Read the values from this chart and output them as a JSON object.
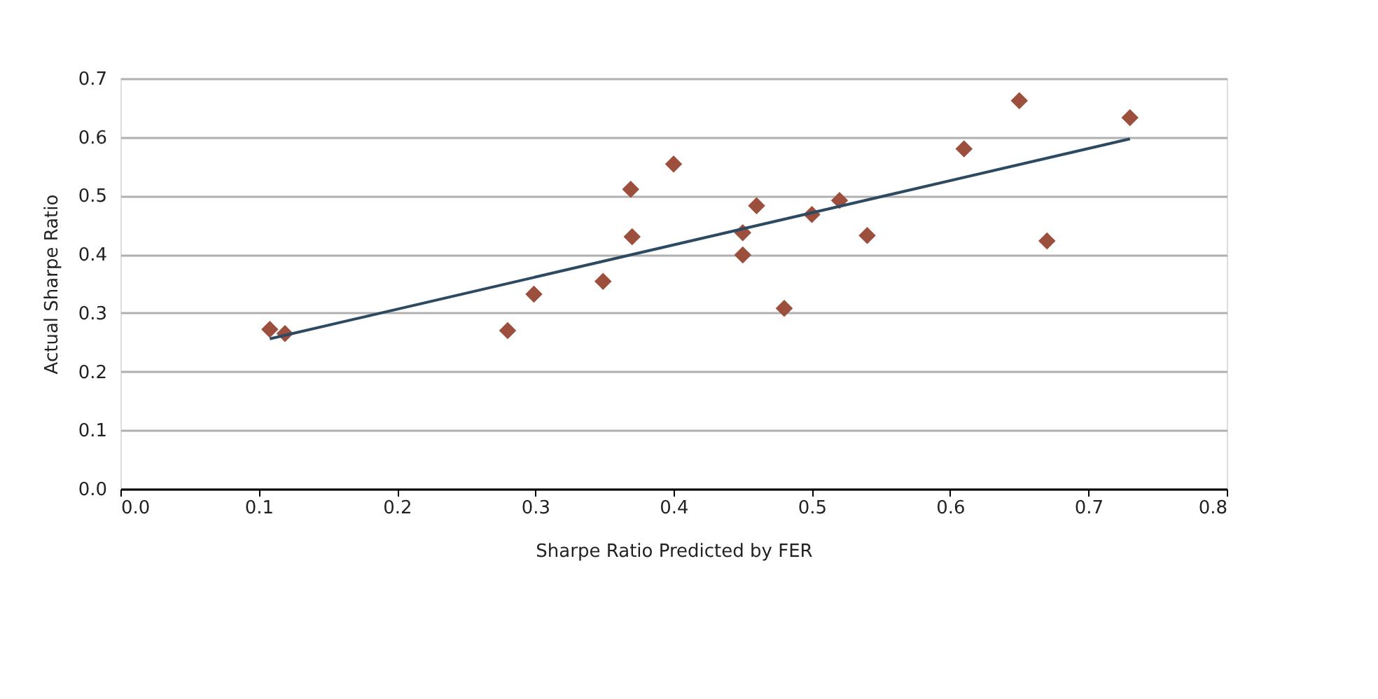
{
  "chart_data": {
    "type": "scatter",
    "xlabel": "Sharpe Ratio Predicted by FER",
    "ylabel": "Actual Sharpe Ratio",
    "x": [
      0.108,
      0.119,
      0.28,
      0.299,
      0.349,
      0.369,
      0.37,
      0.4,
      0.45,
      0.45,
      0.46,
      0.48,
      0.5,
      0.52,
      0.54,
      0.61,
      0.65,
      0.67,
      0.73
    ],
    "series": [
      {
        "color": "#9c4f3c",
        "marker": "diamond",
        "values": [
          0.272,
          0.265,
          0.27,
          0.332,
          0.354,
          0.511,
          0.43,
          0.554,
          0.437,
          0.399,
          0.483,
          0.308,
          0.468,
          0.492,
          0.432,
          0.58,
          0.662,
          0.423,
          0.633
        ]
      },
      {
        "type": "line",
        "color": "#2d4a63",
        "line_style": "solid",
        "x": [
          0.108,
          0.73
        ],
        "values": [
          0.256,
          0.597
        ]
      }
    ],
    "xlim": [
      0,
      0.8
    ],
    "ylim": [
      0,
      0.7
    ],
    "xticks": [
      {
        "value": 0,
        "label": "0.0"
      },
      {
        "value": 0.1,
        "label": "0.1"
      },
      {
        "value": 0.2,
        "label": "0.2"
      },
      {
        "value": 0.3,
        "label": "0.3"
      },
      {
        "value": 0.4,
        "label": "0.4"
      },
      {
        "value": 0.5,
        "label": "0.5"
      },
      {
        "value": 0.6,
        "label": "0.6"
      },
      {
        "value": 0.7,
        "label": "0.7"
      },
      {
        "value": 0.8,
        "label": "0.8"
      }
    ],
    "yticks": [
      {
        "value": 0,
        "label": "0.0"
      },
      {
        "value": 0.1,
        "label": "0.1"
      },
      {
        "value": 0.2,
        "label": "0.2"
      },
      {
        "value": 0.3,
        "label": "0.3"
      },
      {
        "value": 0.4,
        "label": "0.4"
      },
      {
        "value": 0.5,
        "label": "0.5"
      },
      {
        "value": 0.6,
        "label": "0.6"
      },
      {
        "value": 0.7,
        "label": "0.7"
      }
    ],
    "grid": "y"
  }
}
